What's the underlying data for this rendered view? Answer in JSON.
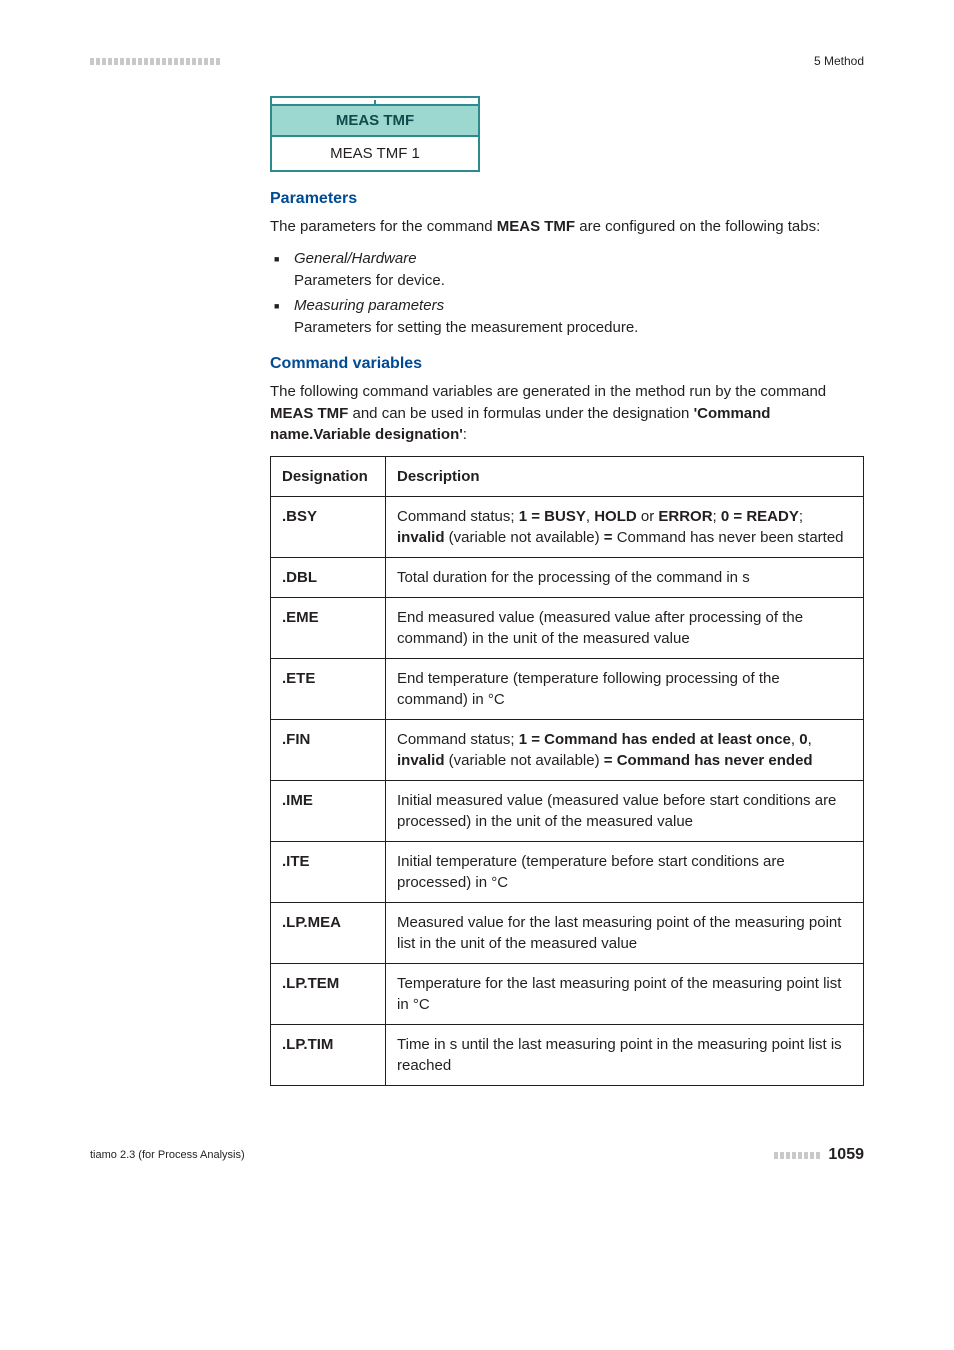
{
  "header": {
    "tick_count": 22,
    "tick_color": "#c7c9cb",
    "section_label": "5 Method"
  },
  "figure": {
    "title": "MEAS TMF",
    "body": "MEAS TMF 1",
    "border_color": "#2b8b8d",
    "header_bg": "#9dd8d0"
  },
  "parameters": {
    "heading": "Parameters",
    "intro_pre": "The parameters for the command ",
    "intro_cmd": "MEAS TMF",
    "intro_post": " are configured on the following tabs:",
    "items": [
      {
        "title": "General/Hardware",
        "desc": "Parameters for device."
      },
      {
        "title": "Measuring parameters",
        "desc": "Parameters for setting the measurement procedure."
      }
    ]
  },
  "cmdvars": {
    "heading": "Command variables",
    "intro_pre": "The following command variables are generated in the method run by the command ",
    "intro_cmd": "MEAS TMF",
    "intro_mid": " and can be used in formulas under the designation ",
    "intro_des": "'Command name.Variable designation'",
    "intro_post": ":",
    "col_designation": "Designation",
    "col_description": "Description",
    "rows": [
      {
        "d": ".BSY",
        "desc_html": "Command status; <b>1 = BUSY</b>, <b>HOLD</b> or <b>ERROR</b>; <b>0 = READY</b>; <b>invalid</b> (variable not available) <b>=</b> Command has never been started"
      },
      {
        "d": ".DBL",
        "desc_html": "Total duration for the processing of the command in s"
      },
      {
        "d": ".EME",
        "desc_html": "End measured value (measured value after processing of the command) in the unit of the measured value"
      },
      {
        "d": ".ETE",
        "desc_html": "End temperature (temperature following processing of the command) in °C"
      },
      {
        "d": ".FIN",
        "desc_html": "Command status; <b>1 = Command has ended at least once</b>, <b>0</b>, <b>invalid</b> (variable not available) <b>= Command has never ended</b>"
      },
      {
        "d": ".IME",
        "desc_html": "Initial measured value (measured value before start conditions are processed) in the unit of the measured value"
      },
      {
        "d": ".ITE",
        "desc_html": "Initial temperature (temperature before start conditions are processed) in °C"
      },
      {
        "d": ".LP.MEA",
        "desc_html": "Measured value for the last measuring point of the measuring point list in the unit of the measured value"
      },
      {
        "d": ".LP.TEM",
        "desc_html": "Temperature for the last measuring point of the measuring point list in °C"
      },
      {
        "d": ".LP.TIM",
        "desc_html": "Time in s until the last measuring point in the measuring point list is reached"
      }
    ]
  },
  "footer": {
    "left": "tiamo 2.3 (for Process Analysis)",
    "tick_count": 8,
    "page": "1059"
  }
}
